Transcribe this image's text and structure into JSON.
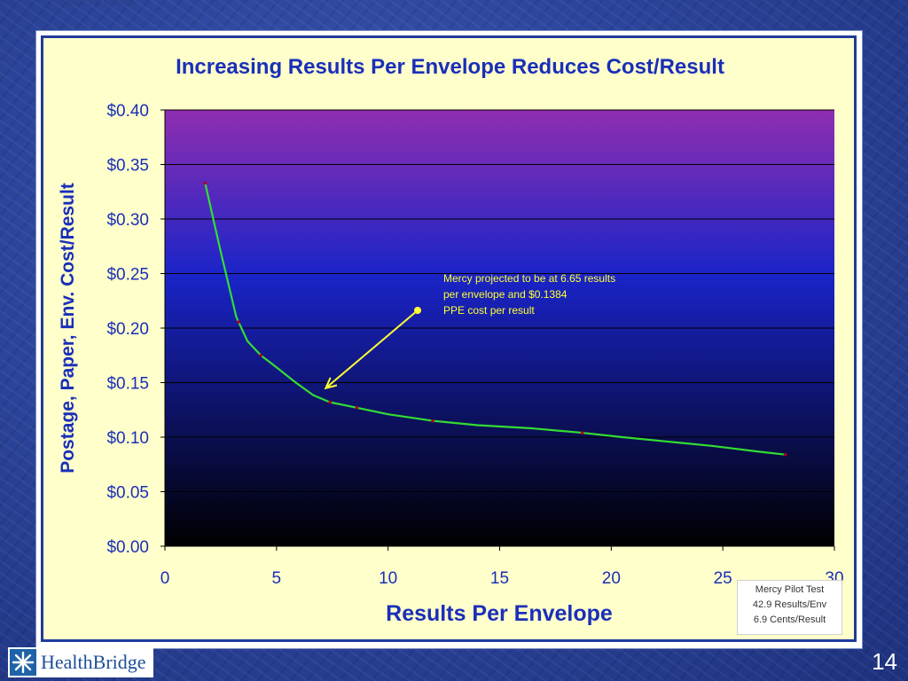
{
  "slide": {
    "top_caption": "Results Per Envelope",
    "page_number": "14",
    "logo_text": "HealthBridge"
  },
  "chart_data": {
    "type": "line",
    "title": "Increasing Results Per Envelope Reduces Cost/Result",
    "xlabel": "Results Per Envelope",
    "ylabel": "Postage, Paper, Env. Cost/Result",
    "xlim": [
      0,
      30
    ],
    "ylim": [
      0,
      0.4
    ],
    "x_ticks": [
      "0",
      "5",
      "10",
      "15",
      "20",
      "25",
      "30"
    ],
    "y_ticks": [
      "$0.00",
      "$0.05",
      "$0.10",
      "$0.15",
      "$0.20",
      "$0.25",
      "$0.30",
      "$0.35",
      "$0.40"
    ],
    "grid": true,
    "series": [
      {
        "x": [
          1.8,
          2.5,
          3.2,
          3.7,
          4.3,
          5.0,
          5.8,
          6.65,
          7.4,
          8.6,
          10.0,
          12.0,
          14.0,
          16.5,
          18.7,
          20.5,
          22.5,
          24.5,
          26.5,
          27.8
        ],
        "y": [
          0.333,
          0.27,
          0.21,
          0.188,
          0.175,
          0.164,
          0.151,
          0.1384,
          0.132,
          0.127,
          0.121,
          0.115,
          0.111,
          0.108,
          0.104,
          0.1,
          0.096,
          0.092,
          0.087,
          0.084
        ],
        "color": "#33dd33"
      }
    ],
    "markers_x": [
      1.8,
      3.3,
      4.3,
      7.4,
      8.6,
      12.0,
      18.7,
      27.8
    ],
    "annotation": {
      "lines": [
        "Mercy projected to be at 6.65 results",
        "per envelope and $0.1384",
        "PPE cost per result"
      ],
      "target_x": 6.65,
      "target_y": 0.1384,
      "color": "#ffff33"
    },
    "pilot_box": [
      "Mercy Pilot Test",
      "42.9 Results/Env",
      "6.9 Cents/Result"
    ],
    "plot_gradient": [
      "#8f2eb0",
      "#1a24c8",
      "#000000"
    ],
    "text_color": "#1a2fb8"
  }
}
